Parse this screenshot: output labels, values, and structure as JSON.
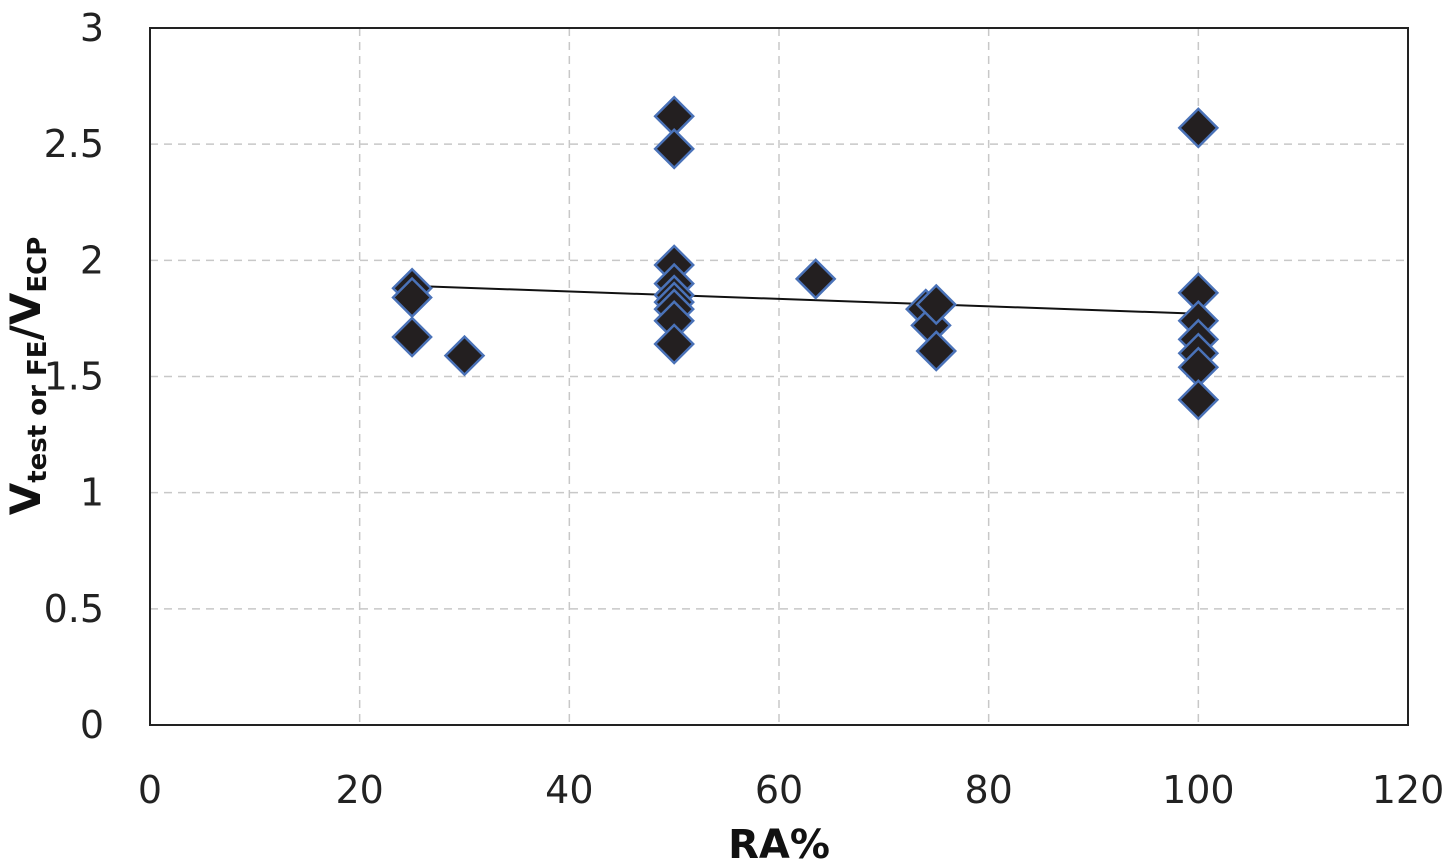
{
  "chart_data": {
    "type": "scatter",
    "title": "",
    "xlabel": "RA%",
    "ylabel": {
      "main": "V",
      "sub1": "test or FE",
      "mid": "/V",
      "sub2": "ECP"
    },
    "xlim": [
      0,
      120
    ],
    "ylim": [
      0,
      3
    ],
    "xticks": [
      0,
      20,
      40,
      60,
      80,
      100,
      120
    ],
    "yticks": [
      0,
      0.5,
      1,
      1.5,
      2,
      2.5,
      3
    ],
    "ytick_labels": [
      "0",
      "0.5",
      "1",
      "1.5",
      "2",
      "2.5",
      "3"
    ],
    "grid": true,
    "marker_color": "#231f20",
    "marker_edge": "#4a72b8",
    "points": [
      [
        25,
        1.88
      ],
      [
        25,
        1.84
      ],
      [
        25,
        1.67
      ],
      [
        30,
        1.59
      ],
      [
        50,
        2.62
      ],
      [
        50,
        2.48
      ],
      [
        50,
        1.98
      ],
      [
        50,
        1.9
      ],
      [
        50,
        1.85
      ],
      [
        50,
        1.82
      ],
      [
        50,
        1.79
      ],
      [
        50,
        1.74
      ],
      [
        50,
        1.64
      ],
      [
        63.5,
        1.92
      ],
      [
        74,
        1.79
      ],
      [
        74.5,
        1.72
      ],
      [
        75,
        1.81
      ],
      [
        75,
        1.61
      ],
      [
        100,
        2.57
      ],
      [
        100,
        1.86
      ],
      [
        100,
        1.74
      ],
      [
        100,
        1.66
      ],
      [
        100,
        1.6
      ],
      [
        100,
        1.54
      ],
      [
        100,
        1.4
      ]
    ],
    "trendline": [
      [
        25,
        1.89
      ],
      [
        100,
        1.77
      ]
    ]
  }
}
